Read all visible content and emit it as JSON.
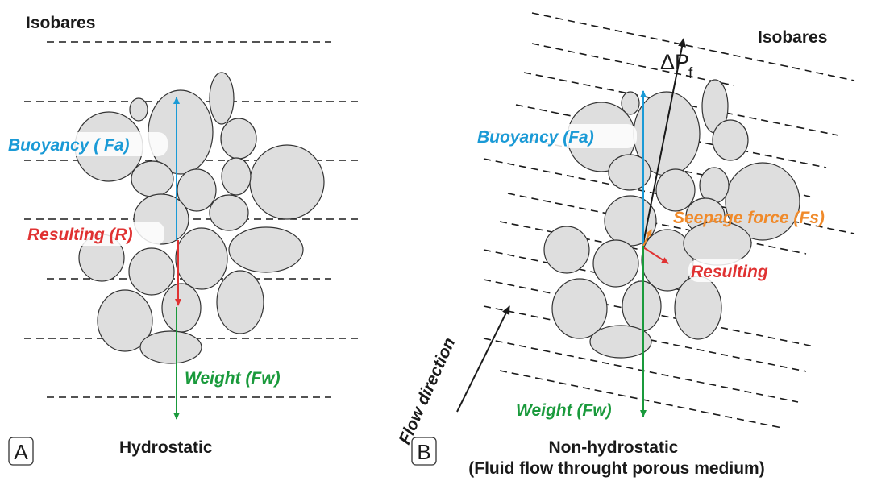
{
  "colors": {
    "buoyancy": "#1a9ad6",
    "resulting": "#e03232",
    "weight": "#1a9a3c",
    "seepage": "#f08a2a",
    "ink": "#1a1a1a",
    "grain_fill": "#dedede"
  },
  "panel_a": {
    "title": "Isobares",
    "buoyancy_label": "Buoyancy ( Fa)",
    "resulting_label": "Resulting (R)",
    "weight_label": "Weight (Fw)",
    "caption": "Hydrostatic",
    "letter": "A"
  },
  "panel_b": {
    "title": "Isobares",
    "pressure_label": "ΔP",
    "pressure_sub": "f",
    "buoyancy_label": "Buoyancy (Fa)",
    "seepage_label": "Seepage force (Fs)",
    "resulting_label": "Resulting",
    "weight_label": "Weight (Fw)",
    "flow_label": "Flow direction",
    "caption_line1": "Non-hydrostatic",
    "caption_line2": "(Fluid flow throught porous medium)",
    "letter": "B"
  }
}
